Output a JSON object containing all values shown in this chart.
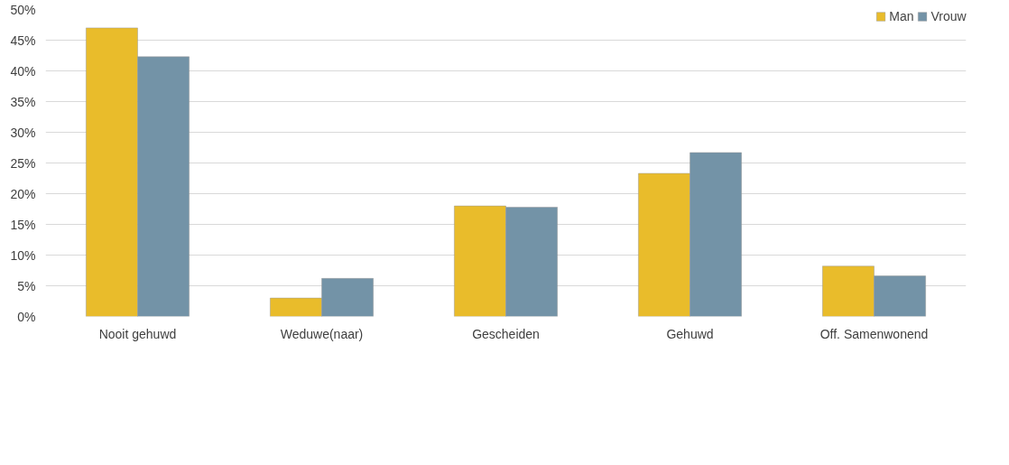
{
  "chart_data": {
    "type": "bar",
    "categories": [
      "Nooit gehuwd",
      "Weduwe(naar)",
      "Gescheiden",
      "Gehuwd",
      "Off. Samenwonend"
    ],
    "series": [
      {
        "name": "Man",
        "color": "#e9bc2b",
        "values": [
          47,
          3,
          18,
          23.3,
          8.2
        ]
      },
      {
        "name": "Vrouw",
        "color": "#7393a7",
        "values": [
          42.3,
          6.2,
          17.8,
          26.7,
          6.6
        ]
      }
    ],
    "ylim": [
      0,
      50
    ],
    "yticks": [
      {
        "value": 0,
        "label": "0%"
      },
      {
        "value": 5,
        "label": "5%"
      },
      {
        "value": 10,
        "label": "10%"
      },
      {
        "value": 15,
        "label": "15%"
      },
      {
        "value": 20,
        "label": "20%"
      },
      {
        "value": 25,
        "label": "25%"
      },
      {
        "value": 30,
        "label": "30%"
      },
      {
        "value": 35,
        "label": "35%"
      },
      {
        "value": 40,
        "label": "40%"
      },
      {
        "value": 45,
        "label": "45%"
      },
      {
        "value": 50,
        "label": "50%"
      }
    ],
    "grid": "y",
    "legend": "top right"
  }
}
